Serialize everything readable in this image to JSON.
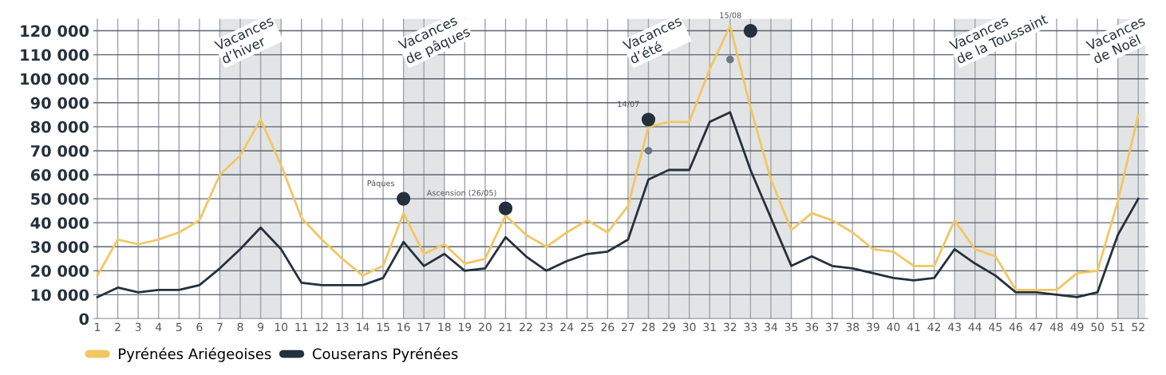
{
  "chart_data": {
    "type": "line",
    "categories": [
      "1",
      "2",
      "3",
      "4",
      "5",
      "6",
      "7",
      "8",
      "9",
      "10",
      "11",
      "12",
      "13",
      "14",
      "15",
      "16",
      "17",
      "18",
      "19",
      "20",
      "21",
      "22",
      "23",
      "24",
      "25",
      "26",
      "27",
      "28",
      "29",
      "30",
      "31",
      "32",
      "33",
      "34",
      "35",
      "36",
      "37",
      "38",
      "39",
      "40",
      "41",
      "42",
      "43",
      "44",
      "45",
      "46",
      "47",
      "48",
      "49",
      "50",
      "51",
      "52"
    ],
    "series": [
      {
        "name": "Pyrénées Ariégeoises",
        "color": "#f2c661",
        "values": [
          18000,
          33000,
          31000,
          33000,
          36000,
          41000,
          60000,
          68000,
          83000,
          64000,
          42000,
          33000,
          25000,
          18000,
          22000,
          44000,
          27000,
          31000,
          23000,
          25000,
          43000,
          35000,
          30000,
          36000,
          41000,
          36000,
          47000,
          80000,
          82000,
          82000,
          104000,
          122000,
          88000,
          58000,
          37000,
          44000,
          41000,
          36000,
          29000,
          28000,
          22000,
          22000,
          41000,
          29000,
          26000,
          12000,
          12000,
          12000,
          19000,
          20000,
          49000,
          85000
        ]
      },
      {
        "name": "Couserans Pyrénées",
        "color": "#24313d",
        "values": [
          9000,
          13000,
          11000,
          12000,
          12000,
          14000,
          21000,
          29000,
          38000,
          29000,
          15000,
          14000,
          14000,
          14000,
          17000,
          32000,
          22000,
          27000,
          20000,
          21000,
          34000,
          26000,
          20000,
          24000,
          27000,
          28000,
          33000,
          58000,
          62000,
          62000,
          82000,
          86000,
          62000,
          42000,
          22000,
          26000,
          22000,
          21000,
          19000,
          17000,
          16000,
          17000,
          29000,
          23000,
          18000,
          11000,
          11000,
          10000,
          9000,
          11000,
          35000,
          50000
        ]
      },
      {
        "type": "scatter",
        "marker": "circle",
        "color": "#6b7784",
        "x": [
          "28",
          "32"
        ],
        "values": [
          70000,
          108000
        ]
      }
    ],
    "ylim": [
      0,
      125000
    ],
    "yticks": [
      {
        "value": 0,
        "label": "0"
      },
      {
        "value": 10000,
        "label": "10 000"
      },
      {
        "value": 20000,
        "label": "20 000"
      },
      {
        "value": 30000,
        "label": "30 000"
      },
      {
        "value": 40000,
        "label": "40 000"
      },
      {
        "value": 50000,
        "label": "50 000"
      },
      {
        "value": 60000,
        "label": "60 000"
      },
      {
        "value": 70000,
        "label": "70 000"
      },
      {
        "value": 80000,
        "label": "80 000"
      },
      {
        "value": 90000,
        "label": "90 000"
      },
      {
        "value": 100000,
        "label": "100 000"
      },
      {
        "value": 110000,
        "label": "110 000"
      },
      {
        "value": 120000,
        "label": "120 000"
      }
    ],
    "bands": [
      {
        "axis": "x",
        "from": "7",
        "to": "10",
        "label": "Vacances\nd’hiver",
        "color": "#e3e4e6"
      },
      {
        "axis": "x",
        "from": "16",
        "to": "18",
        "label": "Vacances\nde pâques",
        "color": "#e3e4e6"
      },
      {
        "axis": "x",
        "from": "27",
        "to": "35",
        "label": "Vacances\nd’été",
        "color": "#e3e4e6"
      },
      {
        "axis": "x",
        "from": "43",
        "to": "45",
        "label": "Vacances\nde la Toussaint",
        "color": "#e3e4e6"
      },
      {
        "axis": "x",
        "from": "51",
        "to": "52",
        "label": "Vacances\nde Noël",
        "color": "#e3e4e6"
      }
    ],
    "annotations": [
      {
        "text": "Pâques",
        "x": "16",
        "y": 50000
      },
      {
        "text": "Ascension (26/05)",
        "x": "21",
        "y": 46000
      },
      {
        "text": "14/07",
        "x": "28",
        "y": 83000
      },
      {
        "text": "15/08",
        "x": "33",
        "y": 120000
      }
    ],
    "grid": true,
    "legend": "bottom left",
    "marker": "none"
  }
}
